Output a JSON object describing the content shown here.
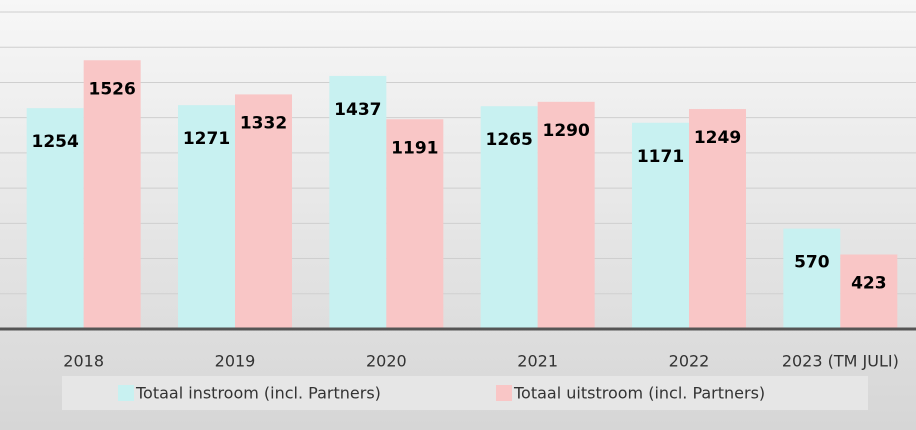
{
  "chart_data": {
    "type": "bar",
    "categories": [
      "2018",
      "2019",
      "2020",
      "2021",
      "2022",
      "2023 (TM JULI)"
    ],
    "series": [
      {
        "name": "Totaal instroom (incl. Partners)",
        "color": "#c8f1f1",
        "values": [
          1254,
          1271,
          1437,
          1265,
          1171,
          570
        ]
      },
      {
        "name": "Totaal uitstroom (incl. Partners)",
        "color": "#f9c6c6",
        "values": [
          1526,
          1332,
          1191,
          1290,
          1249,
          423
        ]
      }
    ],
    "ylim": [
      0,
      1800
    ],
    "yticks": [
      0,
      200,
      400,
      600,
      800,
      1000,
      1200,
      1400,
      1600,
      1800
    ],
    "grid": true,
    "legend": "bottom"
  }
}
